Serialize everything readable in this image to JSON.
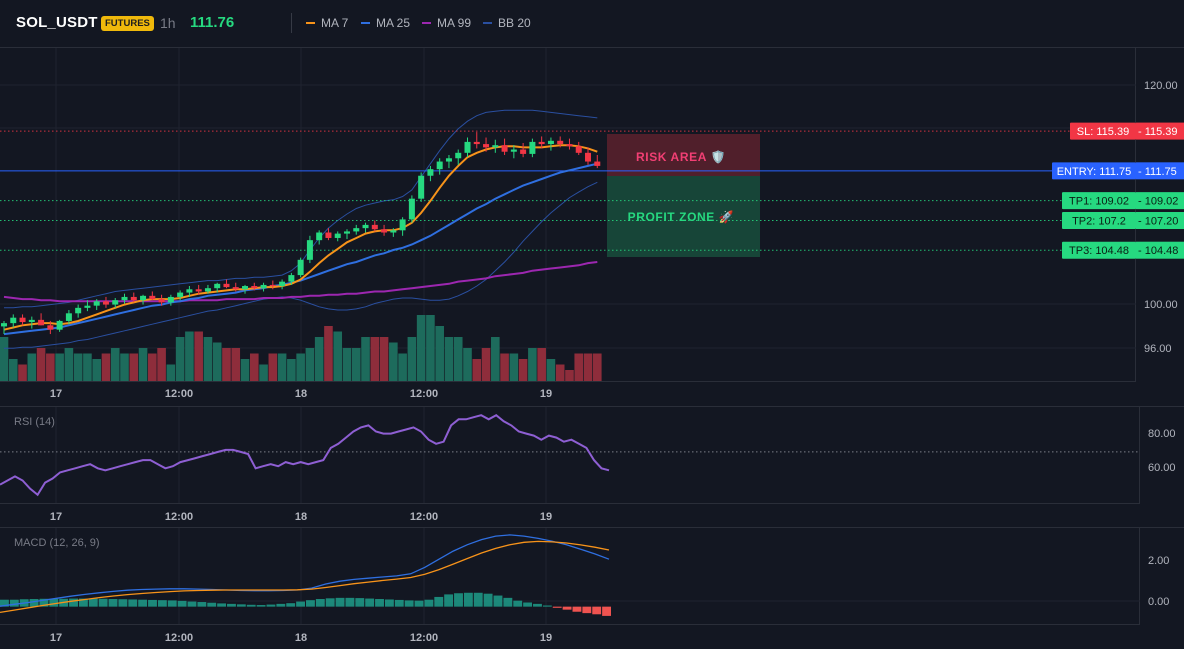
{
  "header": {
    "symbol": "SOL_USDT",
    "badge": "FUTURES",
    "timeframe": "1h",
    "last_price": "111.76"
  },
  "legend": [
    {
      "label": "MA 7",
      "color": "#f7931a"
    },
    {
      "label": "MA 25",
      "color": "#2f6fe0"
    },
    {
      "label": "MA 99",
      "color": "#9c27b0"
    },
    {
      "label": "BB 20",
      "color": "#2a4fa0"
    }
  ],
  "colors": {
    "up": "#26d980",
    "down": "#f23645",
    "vol_up": "#1d6b5c",
    "vol_down": "#8e2d3b",
    "sl": "#f23645",
    "entry": "#2962ff",
    "tp": "#26d980"
  },
  "levels": {
    "sl": {
      "value": 115.39,
      "label": "SL: 115.39",
      "price": "115.39"
    },
    "entry": {
      "value": 111.75,
      "label": "ENTRY: 111.75",
      "price": "111.75"
    },
    "tp1": {
      "value": 109.02,
      "label": "TP1: 109.02",
      "price": "109.02"
    },
    "tp2": {
      "value": 107.2,
      "label": "TP2: 107.2",
      "price": "107.20"
    },
    "tp3": {
      "value": 104.48,
      "label": "TP3: 104.48",
      "price": "104.48"
    }
  },
  "zones": {
    "risk": "RISK AREA 🛡️",
    "profit": "PROFIT ZONE 🚀"
  },
  "x_ticks": [
    "17",
    "12:00",
    "18",
    "12:00",
    "19"
  ],
  "price_ticks": [
    "120.00",
    "100.00",
    "96.00"
  ],
  "rsi": {
    "label": "RSI (14)",
    "ticks": [
      "80.00",
      "60.00"
    ],
    "ref_level": 70
  },
  "macd": {
    "label": "MACD (12, 26, 9)",
    "ticks": [
      "2.00",
      "0.00"
    ]
  },
  "chart_data": [
    {
      "type": "candlestick",
      "title": "SOL_USDT 1h",
      "x_ticks": [
        "17",
        "12:00",
        "18",
        "12:00",
        "19"
      ],
      "ylim": [
        92.5,
        123.0
      ],
      "candles": [
        [
          97.5,
          98.0,
          96.8,
          97.8
        ],
        [
          97.8,
          98.6,
          97.4,
          98.3
        ],
        [
          98.3,
          98.6,
          97.6,
          97.9
        ],
        [
          97.9,
          98.4,
          97.3,
          98.1
        ],
        [
          98.1,
          98.7,
          97.6,
          97.6
        ],
        [
          97.6,
          98.0,
          96.8,
          97.2
        ],
        [
          97.2,
          98.1,
          97.0,
          98.0
        ],
        [
          98.0,
          99.0,
          97.7,
          98.7
        ],
        [
          98.7,
          99.5,
          98.3,
          99.2
        ],
        [
          99.2,
          99.9,
          98.9,
          99.4
        ],
        [
          99.4,
          100.0,
          99.0,
          99.8
        ],
        [
          99.8,
          100.2,
          99.2,
          99.5
        ],
        [
          99.5,
          100.1,
          99.2,
          99.9
        ],
        [
          99.9,
          100.5,
          99.6,
          100.2
        ],
        [
          100.2,
          100.6,
          99.7,
          99.9
        ],
        [
          99.9,
          100.4,
          99.5,
          100.3
        ],
        [
          100.3,
          100.7,
          99.9,
          100.0
        ],
        [
          100.0,
          100.4,
          99.4,
          99.7
        ],
        [
          99.7,
          100.4,
          99.4,
          100.2
        ],
        [
          100.2,
          100.8,
          99.9,
          100.6
        ],
        [
          100.6,
          101.2,
          100.2,
          100.9
        ],
        [
          100.9,
          101.3,
          100.4,
          100.7
        ],
        [
          100.7,
          101.3,
          100.5,
          101.0
        ],
        [
          101.0,
          101.5,
          100.6,
          101.4
        ],
        [
          101.4,
          101.8,
          101.0,
          101.1
        ],
        [
          101.1,
          101.5,
          100.7,
          100.9
        ],
        [
          100.9,
          101.3,
          100.5,
          101.2
        ],
        [
          101.2,
          101.5,
          100.8,
          101.0
        ],
        [
          101.0,
          101.5,
          100.7,
          101.3
        ],
        [
          101.3,
          101.7,
          100.9,
          101.2
        ],
        [
          101.2,
          101.8,
          100.9,
          101.6
        ],
        [
          101.6,
          102.4,
          101.3,
          102.2
        ],
        [
          102.2,
          103.8,
          102.0,
          103.6
        ],
        [
          103.6,
          105.8,
          103.3,
          105.4
        ],
        [
          105.4,
          106.3,
          105.0,
          106.1
        ],
        [
          106.1,
          106.5,
          105.4,
          105.6
        ],
        [
          105.6,
          106.2,
          105.3,
          106.0
        ],
        [
          106.0,
          106.4,
          105.5,
          106.2
        ],
        [
          106.2,
          106.8,
          105.9,
          106.5
        ],
        [
          106.5,
          107.0,
          106.1,
          106.8
        ],
        [
          106.8,
          107.2,
          106.2,
          106.4
        ],
        [
          106.4,
          106.8,
          105.8,
          106.1
        ],
        [
          106.1,
          106.5,
          105.7,
          106.3
        ],
        [
          106.3,
          107.5,
          105.8,
          107.3
        ],
        [
          107.3,
          109.5,
          107.0,
          109.2
        ],
        [
          109.2,
          111.6,
          108.9,
          111.3
        ],
        [
          111.3,
          112.2,
          110.8,
          111.9
        ],
        [
          111.9,
          112.9,
          111.4,
          112.6
        ],
        [
          112.6,
          113.2,
          112.0,
          112.9
        ],
        [
          112.9,
          113.7,
          112.3,
          113.4
        ],
        [
          113.4,
          114.8,
          113.0,
          114.4
        ],
        [
          114.4,
          115.3,
          113.8,
          114.2
        ],
        [
          114.2,
          114.8,
          113.5,
          113.9
        ],
        [
          113.9,
          114.6,
          113.4,
          114.1
        ],
        [
          114.1,
          114.7,
          113.2,
          113.5
        ],
        [
          113.5,
          114.1,
          112.9,
          113.7
        ],
        [
          113.7,
          114.3,
          113.0,
          113.3
        ],
        [
          113.3,
          114.7,
          113.0,
          114.4
        ],
        [
          114.4,
          114.9,
          113.8,
          114.2
        ],
        [
          114.2,
          114.8,
          113.6,
          114.5
        ],
        [
          114.5,
          114.9,
          113.9,
          114.2
        ],
        [
          114.2,
          114.7,
          113.7,
          114.0
        ],
        [
          114.0,
          114.4,
          113.2,
          113.4
        ],
        [
          113.4,
          113.9,
          112.3,
          112.6
        ],
        [
          112.6,
          113.2,
          112.0,
          112.2
        ]
      ],
      "volume": [
        8,
        4,
        3,
        5,
        6,
        5,
        5,
        6,
        5,
        5,
        4,
        5,
        6,
        5,
        5,
        6,
        5,
        6,
        3,
        8,
        9,
        9,
        8,
        7,
        6,
        6,
        4,
        5,
        3,
        5,
        5,
        4,
        5,
        6,
        8,
        10,
        9,
        6,
        6,
        8,
        8,
        8,
        7,
        5,
        8,
        12,
        12,
        10,
        8,
        8,
        6,
        4,
        6,
        8,
        5,
        5,
        4,
        6,
        6,
        4,
        3,
        2,
        5,
        5,
        5
      ],
      "ma7": [
        97.2,
        97.4,
        97.6,
        97.7,
        97.8,
        97.8,
        97.7,
        97.8,
        98.0,
        98.3,
        98.6,
        98.9,
        99.2,
        99.5,
        99.7,
        99.9,
        100.0,
        100.0,
        100.0,
        100.1,
        100.3,
        100.5,
        100.6,
        100.7,
        100.8,
        100.9,
        100.9,
        101.0,
        101.1,
        101.1,
        101.2,
        101.4,
        101.8,
        102.5,
        103.3,
        104.0,
        104.6,
        105.2,
        105.6,
        106.0,
        106.2,
        106.3,
        106.3,
        106.5,
        107.0,
        107.9,
        109.0,
        110.2,
        111.3,
        112.2,
        113.0,
        113.4,
        113.7,
        113.9,
        114.0,
        114.0,
        113.9,
        113.9,
        113.9,
        114.0,
        114.1,
        114.1,
        114.0,
        113.8,
        113.5
      ],
      "ma25": [
        96.8,
        96.9,
        97.0,
        97.1,
        97.2,
        97.3,
        97.4,
        97.6,
        97.8,
        98.0,
        98.2,
        98.4,
        98.6,
        98.8,
        99.0,
        99.2,
        99.4,
        99.5,
        99.7,
        99.8,
        100.0,
        100.1,
        100.3,
        100.4,
        100.5,
        100.6,
        100.8,
        100.9,
        101.0,
        101.2,
        101.3,
        101.5,
        101.7,
        102.0,
        102.3,
        102.6,
        102.9,
        103.2,
        103.4,
        103.7,
        104.0,
        104.2,
        104.5,
        104.7,
        105.0,
        105.4,
        105.8,
        106.3,
        106.8,
        107.3,
        107.8,
        108.3,
        108.7,
        109.2,
        109.6,
        110.0,
        110.4,
        110.7,
        111.0,
        111.3,
        111.6,
        111.8,
        112.0,
        112.2,
        112.4
      ],
      "ma99": [
        100.2,
        100.1,
        100.0,
        100.0,
        99.9,
        99.9,
        99.8,
        99.8,
        99.8,
        99.8,
        99.8,
        99.8,
        99.8,
        99.8,
        99.8,
        99.8,
        99.8,
        99.8,
        99.8,
        99.8,
        99.9,
        99.9,
        99.9,
        99.9,
        100.0,
        100.0,
        100.0,
        100.0,
        100.1,
        100.1,
        100.1,
        100.2,
        100.2,
        100.3,
        100.3,
        100.4,
        100.4,
        100.5,
        100.5,
        100.6,
        100.7,
        100.7,
        100.8,
        100.9,
        101.0,
        101.1,
        101.2,
        101.3,
        101.4,
        101.6,
        101.7,
        101.8,
        101.9,
        102.1,
        102.2,
        102.3,
        102.4,
        102.6,
        102.7,
        102.8,
        102.9,
        103.0,
        103.1,
        103.3,
        103.4
      ],
      "bb_upper": [
        99.2,
        99.2,
        99.3,
        99.3,
        99.4,
        99.5,
        99.6,
        99.7,
        99.9,
        100.1,
        100.3,
        100.5,
        100.7,
        100.8,
        100.9,
        101.0,
        101.1,
        101.2,
        101.3,
        101.4,
        101.5,
        101.6,
        101.7,
        101.7,
        101.8,
        101.9,
        101.9,
        102.0,
        102.0,
        102.1,
        102.2,
        102.6,
        103.3,
        104.5,
        105.6,
        106.5,
        107.2,
        107.8,
        108.3,
        108.6,
        108.8,
        109.0,
        109.1,
        109.4,
        110.0,
        111.2,
        112.4,
        113.6,
        114.7,
        115.6,
        116.3,
        116.8,
        117.1,
        117.2,
        117.3,
        117.3,
        117.3,
        117.3,
        117.2,
        117.1,
        117.0,
        116.9,
        116.8,
        116.7,
        116.6
      ],
      "bb_lower": [
        95.5,
        95.5,
        95.6,
        95.6,
        95.7,
        95.8,
        95.9,
        96.0,
        96.2,
        96.3,
        96.5,
        96.7,
        96.9,
        97.1,
        97.3,
        97.5,
        97.7,
        97.9,
        98.1,
        98.3,
        98.5,
        98.7,
        98.9,
        99.0,
        99.2,
        99.4,
        99.6,
        99.8,
        100.0,
        100.1,
        100.2,
        100.1,
        99.9,
        99.6,
        99.3,
        99.1,
        99.0,
        99.0,
        99.1,
        99.3,
        99.6,
        99.8,
        100.0,
        100.1,
        100.1,
        100.0,
        99.9,
        99.9,
        100.0,
        100.3,
        100.7,
        101.2,
        101.8,
        102.6,
        103.4,
        104.3,
        105.3,
        106.2,
        107.1,
        107.9,
        108.6,
        109.3,
        109.8,
        110.3,
        110.7
      ]
    },
    {
      "type": "line",
      "title": "RSI (14)",
      "ylim": [
        45,
        92
      ],
      "values": [
        54,
        56,
        58,
        56,
        52,
        49,
        55,
        57,
        60,
        61,
        62,
        63,
        64,
        62,
        61,
        62,
        63,
        64,
        65,
        66,
        66,
        64,
        62,
        63,
        65,
        66,
        67,
        68,
        69,
        70,
        71,
        71,
        70,
        69,
        62,
        63,
        64,
        63,
        65,
        64,
        65,
        64,
        65,
        66,
        72,
        74,
        77,
        80,
        82,
        83,
        80,
        79,
        79,
        80,
        81,
        82,
        80,
        76,
        74,
        75,
        83,
        86,
        86,
        87,
        88,
        86,
        88,
        85,
        83,
        80,
        79,
        78,
        76,
        78,
        77,
        75,
        76,
        74,
        72,
        66,
        62,
        61
      ],
      "ref_level": 70
    },
    {
      "type": "bar",
      "title": "MACD (12, 26, 9)",
      "ylim": [
        -0.75,
        3.4
      ],
      "histogram": [
        0.3,
        0.3,
        0.32,
        0.33,
        0.34,
        0.34,
        0.34,
        0.35,
        0.35,
        0.35,
        0.34,
        0.33,
        0.32,
        0.31,
        0.3,
        0.29,
        0.28,
        0.27,
        0.25,
        0.22,
        0.2,
        0.17,
        0.14,
        0.12,
        0.1,
        0.08,
        0.07,
        0.09,
        0.12,
        0.15,
        0.22,
        0.28,
        0.33,
        0.36,
        0.38,
        0.38,
        0.37,
        0.35,
        0.33,
        0.31,
        0.29,
        0.27,
        0.26,
        0.3,
        0.42,
        0.53,
        0.58,
        0.6,
        0.6,
        0.56,
        0.48,
        0.38,
        0.26,
        0.18,
        0.12,
        0.05,
        -0.05,
        -0.13,
        -0.22,
        -0.28,
        -0.33,
        -0.4
      ],
      "macd": [
        0.02,
        0.1,
        0.18,
        0.27,
        0.36,
        0.45,
        0.53,
        0.6,
        0.66,
        0.71,
        0.74,
        0.76,
        0.77,
        0.77,
        0.76,
        0.74,
        0.72,
        0.7,
        0.69,
        0.69,
        0.7,
        0.72,
        0.8,
        0.98,
        1.1,
        1.18,
        1.23,
        1.28,
        1.33,
        1.42,
        1.7,
        2.05,
        2.4,
        2.68,
        2.9,
        3.05,
        3.1,
        3.05,
        2.95,
        2.83,
        2.68,
        2.48,
        2.28,
        2.05
      ],
      "signal": [
        -0.25,
        -0.15,
        -0.05,
        0.05,
        0.14,
        0.23,
        0.31,
        0.39,
        0.46,
        0.52,
        0.57,
        0.61,
        0.65,
        0.68,
        0.7,
        0.71,
        0.72,
        0.72,
        0.72,
        0.72,
        0.72,
        0.73,
        0.76,
        0.83,
        0.91,
        0.99,
        1.06,
        1.13,
        1.19,
        1.26,
        1.4,
        1.6,
        1.84,
        2.08,
        2.32,
        2.52,
        2.68,
        2.78,
        2.82,
        2.8,
        2.75,
        2.67,
        2.57,
        2.45
      ]
    }
  ]
}
